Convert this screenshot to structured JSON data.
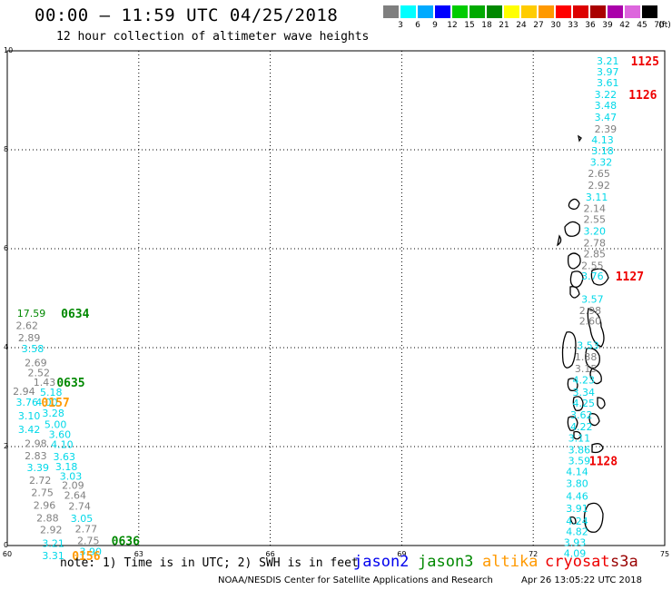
{
  "title": "00:00 – 11:59 UTC 04/25/2018",
  "subtitle": "12 hour collection of altimeter wave heights",
  "scale": {
    "unit_label": "(ft)",
    "levels": [
      {
        "label": "3",
        "color": "#7f7f7f"
      },
      {
        "label": "6",
        "color": "#00ffff"
      },
      {
        "label": "9",
        "color": "#00aaff"
      },
      {
        "label": "12",
        "color": "#0000ff"
      },
      {
        "label": "15",
        "color": "#00cc00"
      },
      {
        "label": "18",
        "color": "#00aa00"
      },
      {
        "label": "21",
        "color": "#008800"
      },
      {
        "label": "24",
        "color": "#ffff00"
      },
      {
        "label": "27",
        "color": "#ffcc00"
      },
      {
        "label": "30",
        "color": "#ff9900"
      },
      {
        "label": "33",
        "color": "#ff0000"
      },
      {
        "label": "36",
        "color": "#dd0000"
      },
      {
        "label": "39",
        "color": "#aa0000"
      },
      {
        "label": "42",
        "color": "#aa00aa"
      },
      {
        "label": "45",
        "color": "#dd66dd"
      },
      {
        "label": "70",
        "color": "#000000"
      }
    ]
  },
  "chart_data": {
    "type": "scatter",
    "x_range": [
      60,
      75
    ],
    "y_range": [
      0,
      10
    ],
    "x_ticks": [
      "60",
      "63",
      "66",
      "69",
      "72",
      "75"
    ],
    "y_ticks": [
      "0",
      "2",
      "4",
      "6",
      "8",
      "10"
    ],
    "grid": true,
    "point_colors": {
      "gray": "#808080",
      "cyan": "#00d8e8",
      "green": "#008800",
      "orange": "#ff9900",
      "red": "#ee0000"
    },
    "observations": [
      {
        "lon": 60.55,
        "lat": 4.7,
        "v": "17.59",
        "c": "green"
      },
      {
        "lon": 60.45,
        "lat": 4.45,
        "v": "2.62",
        "c": "gray"
      },
      {
        "lon": 60.5,
        "lat": 4.2,
        "v": "2.89",
        "c": "gray"
      },
      {
        "lon": 60.58,
        "lat": 3.98,
        "v": "3.58",
        "c": "cyan"
      },
      {
        "lon": 60.65,
        "lat": 3.7,
        "v": "2.69",
        "c": "gray"
      },
      {
        "lon": 60.72,
        "lat": 3.5,
        "v": "2.52",
        "c": "gray"
      },
      {
        "lon": 60.85,
        "lat": 3.3,
        "v": "1.43",
        "c": "gray"
      },
      {
        "lon": 60.38,
        "lat": 3.12,
        "v": "2.94",
        "c": "gray"
      },
      {
        "lon": 61.0,
        "lat": 3.1,
        "v": "5.18",
        "c": "cyan"
      },
      {
        "lon": 60.45,
        "lat": 2.9,
        "v": "3.76",
        "c": "cyan"
      },
      {
        "lon": 60.9,
        "lat": 2.9,
        "v": "4.00",
        "c": "cyan"
      },
      {
        "lon": 61.05,
        "lat": 2.68,
        "v": "3.28",
        "c": "cyan"
      },
      {
        "lon": 60.5,
        "lat": 2.62,
        "v": "3.10",
        "c": "cyan"
      },
      {
        "lon": 61.1,
        "lat": 2.45,
        "v": "5.00",
        "c": "cyan"
      },
      {
        "lon": 60.5,
        "lat": 2.35,
        "v": "3.42",
        "c": "cyan"
      },
      {
        "lon": 61.2,
        "lat": 2.25,
        "v": "3.60",
        "c": "cyan"
      },
      {
        "lon": 61.25,
        "lat": 2.05,
        "v": "4.10",
        "c": "cyan"
      },
      {
        "lon": 60.65,
        "lat": 2.06,
        "v": "2.98",
        "c": "gray"
      },
      {
        "lon": 60.65,
        "lat": 1.82,
        "v": "2.83",
        "c": "gray"
      },
      {
        "lon": 61.3,
        "lat": 1.8,
        "v": "3.63",
        "c": "cyan"
      },
      {
        "lon": 60.7,
        "lat": 1.58,
        "v": "3.39",
        "c": "cyan"
      },
      {
        "lon": 61.35,
        "lat": 1.6,
        "v": "3.18",
        "c": "cyan"
      },
      {
        "lon": 61.45,
        "lat": 1.4,
        "v": "3.03",
        "c": "cyan"
      },
      {
        "lon": 60.75,
        "lat": 1.32,
        "v": "2.72",
        "c": "gray"
      },
      {
        "lon": 61.5,
        "lat": 1.22,
        "v": "2.09",
        "c": "gray"
      },
      {
        "lon": 60.8,
        "lat": 1.07,
        "v": "2.75",
        "c": "gray"
      },
      {
        "lon": 61.55,
        "lat": 1.02,
        "v": "2.64",
        "c": "gray"
      },
      {
        "lon": 60.85,
        "lat": 0.82,
        "v": "2.96",
        "c": "gray"
      },
      {
        "lon": 61.65,
        "lat": 0.8,
        "v": "2.74",
        "c": "gray"
      },
      {
        "lon": 60.92,
        "lat": 0.56,
        "v": "2.88",
        "c": "gray"
      },
      {
        "lon": 61.7,
        "lat": 0.55,
        "v": "3.05",
        "c": "cyan"
      },
      {
        "lon": 61.0,
        "lat": 0.32,
        "v": "2.92",
        "c": "gray"
      },
      {
        "lon": 61.8,
        "lat": 0.34,
        "v": "2.77",
        "c": "gray"
      },
      {
        "lon": 61.05,
        "lat": 0.05,
        "v": "3.21",
        "c": "cyan"
      },
      {
        "lon": 61.85,
        "lat": 0.1,
        "v": "2.75",
        "c": "gray"
      },
      {
        "lon": 61.9,
        "lat": -0.12,
        "v": "3.90",
        "c": "cyan"
      },
      {
        "lon": 61.05,
        "lat": -0.2,
        "v": "3.31",
        "c": "cyan"
      },
      {
        "lon": 73.7,
        "lat": 9.8,
        "v": "3.21",
        "c": "cyan"
      },
      {
        "lon": 73.7,
        "lat": 9.58,
        "v": "3.97",
        "c": "cyan"
      },
      {
        "lon": 73.7,
        "lat": 9.36,
        "v": "3.61",
        "c": "cyan"
      },
      {
        "lon": 73.65,
        "lat": 9.12,
        "v": "3.22",
        "c": "cyan"
      },
      {
        "lon": 73.65,
        "lat": 8.9,
        "v": "3.48",
        "c": "cyan"
      },
      {
        "lon": 73.65,
        "lat": 8.66,
        "v": "3.47",
        "c": "cyan"
      },
      {
        "lon": 73.65,
        "lat": 8.42,
        "v": "2.39",
        "c": "gray"
      },
      {
        "lon": 73.58,
        "lat": 8.2,
        "v": "4.13",
        "c": "cyan"
      },
      {
        "lon": 73.58,
        "lat": 7.98,
        "v": "3.18",
        "c": "cyan"
      },
      {
        "lon": 73.55,
        "lat": 7.75,
        "v": "3.32",
        "c": "cyan"
      },
      {
        "lon": 73.5,
        "lat": 7.52,
        "v": "2.65",
        "c": "gray"
      },
      {
        "lon": 73.5,
        "lat": 7.28,
        "v": "2.92",
        "c": "gray"
      },
      {
        "lon": 73.45,
        "lat": 7.05,
        "v": "3.11",
        "c": "cyan"
      },
      {
        "lon": 73.4,
        "lat": 6.82,
        "v": "2.14",
        "c": "gray"
      },
      {
        "lon": 73.4,
        "lat": 6.6,
        "v": "2.55",
        "c": "gray"
      },
      {
        "lon": 73.4,
        "lat": 6.36,
        "v": "3.20",
        "c": "cyan"
      },
      {
        "lon": 73.4,
        "lat": 6.12,
        "v": "2.78",
        "c": "gray"
      },
      {
        "lon": 73.4,
        "lat": 5.9,
        "v": "2.85",
        "c": "gray"
      },
      {
        "lon": 73.35,
        "lat": 5.66,
        "v": "2.55",
        "c": "gray"
      },
      {
        "lon": 73.35,
        "lat": 5.45,
        "v": "3.76",
        "c": "cyan"
      },
      {
        "lon": 73.35,
        "lat": 4.98,
        "v": "3.57",
        "c": "cyan"
      },
      {
        "lon": 73.3,
        "lat": 4.75,
        "v": "2.98",
        "c": "gray"
      },
      {
        "lon": 73.3,
        "lat": 4.54,
        "v": "2.60",
        "c": "gray"
      },
      {
        "lon": 73.25,
        "lat": 4.05,
        "v": "3.53",
        "c": "cyan"
      },
      {
        "lon": 73.2,
        "lat": 3.82,
        "v": "1.38",
        "c": "gray"
      },
      {
        "lon": 73.2,
        "lat": 3.58,
        "v": "3.15",
        "c": "gray"
      },
      {
        "lon": 73.15,
        "lat": 3.35,
        "v": "4.23",
        "c": "cyan"
      },
      {
        "lon": 73.15,
        "lat": 3.1,
        "v": "3.34",
        "c": "cyan"
      },
      {
        "lon": 73.15,
        "lat": 2.88,
        "v": "4.25",
        "c": "cyan"
      },
      {
        "lon": 73.1,
        "lat": 2.64,
        "v": "3.62",
        "c": "cyan"
      },
      {
        "lon": 73.1,
        "lat": 2.4,
        "v": "4.22",
        "c": "cyan"
      },
      {
        "lon": 73.05,
        "lat": 2.17,
        "v": "3.11",
        "c": "cyan"
      },
      {
        "lon": 73.05,
        "lat": 1.94,
        "v": "3.86",
        "c": "cyan"
      },
      {
        "lon": 73.05,
        "lat": 1.72,
        "v": "3.59",
        "c": "cyan"
      },
      {
        "lon": 73.0,
        "lat": 1.5,
        "v": "4.14",
        "c": "cyan"
      },
      {
        "lon": 73.0,
        "lat": 1.26,
        "v": "3.80",
        "c": "cyan"
      },
      {
        "lon": 73.0,
        "lat": 1.0,
        "v": "4.46",
        "c": "cyan"
      },
      {
        "lon": 73.0,
        "lat": 0.75,
        "v": "3.91",
        "c": "cyan"
      },
      {
        "lon": 73.0,
        "lat": 0.5,
        "v": "4.24",
        "c": "cyan"
      },
      {
        "lon": 73.0,
        "lat": 0.28,
        "v": "4.82",
        "c": "cyan"
      },
      {
        "lon": 72.95,
        "lat": 0.06,
        "v": "3.93",
        "c": "cyan"
      },
      {
        "lon": 72.95,
        "lat": -0.16,
        "v": "4.09",
        "c": "cyan"
      }
    ],
    "time_labels": [
      {
        "lon": 61.55,
        "lat": 4.7,
        "t": "0634",
        "c": "green"
      },
      {
        "lon": 61.45,
        "lat": 3.3,
        "t": "0635",
        "c": "green"
      },
      {
        "lon": 61.1,
        "lat": 2.9,
        "t": "0157",
        "c": "orange"
      },
      {
        "lon": 62.7,
        "lat": 0.1,
        "t": "0636",
        "c": "green"
      },
      {
        "lon": 61.8,
        "lat": -0.2,
        "t": "0156",
        "c": "orange"
      },
      {
        "lon": 74.55,
        "lat": 9.8,
        "t": "1125",
        "c": "red"
      },
      {
        "lon": 74.5,
        "lat": 9.12,
        "t": "1126",
        "c": "red"
      },
      {
        "lon": 74.2,
        "lat": 5.45,
        "t": "1127",
        "c": "red"
      },
      {
        "lon": 73.6,
        "lat": 1.72,
        "t": "1128",
        "c": "red"
      }
    ]
  },
  "legend": {
    "note": "note: 1) Time is in UTC; 2) SWH is in feet",
    "satellites": [
      {
        "name": "jason2",
        "color": "#0000ee"
      },
      {
        "name": "jason3",
        "color": "#008800"
      },
      {
        "name": "altika",
        "color": "#ff9900"
      },
      {
        "name": "cryosat",
        "color": "#ee0000"
      },
      {
        "name": "s3a",
        "color": "#990000"
      }
    ]
  },
  "footer": {
    "credit": "NOAA/NESDIS Center for Satellite Applications and Research",
    "timestamp": "Apr 26 13:05:22 UTC 2018"
  }
}
